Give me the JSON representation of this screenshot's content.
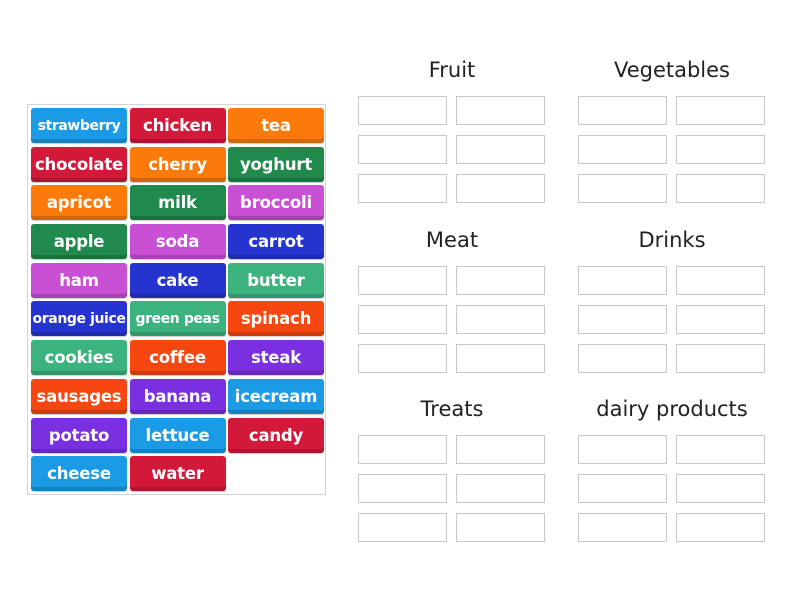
{
  "word_bank": {
    "tiles": [
      {
        "label": "strawberry",
        "color": "#1b9ae6"
      },
      {
        "label": "chicken",
        "color": "#d2193a"
      },
      {
        "label": "tea",
        "color": "#fb7a0a"
      },
      {
        "label": "chocolate",
        "color": "#d2193a"
      },
      {
        "label": "cherry",
        "color": "#fb7a0a"
      },
      {
        "label": "yoghurt",
        "color": "#1f8a4c"
      },
      {
        "label": "apricot",
        "color": "#fb7a0a"
      },
      {
        "label": "milk",
        "color": "#1f8a4c"
      },
      {
        "label": "broccoli",
        "color": "#c94fd4"
      },
      {
        "label": "apple",
        "color": "#1f8a4c"
      },
      {
        "label": "soda",
        "color": "#c94fd4"
      },
      {
        "label": "carrot",
        "color": "#2634cf"
      },
      {
        "label": "ham",
        "color": "#c94fd4"
      },
      {
        "label": "cake",
        "color": "#2634cf"
      },
      {
        "label": "butter",
        "color": "#3cb37e"
      },
      {
        "label": "orange juice",
        "color": "#2634cf"
      },
      {
        "label": "green peas",
        "color": "#3cb37e"
      },
      {
        "label": "spinach",
        "color": "#f5470f"
      },
      {
        "label": "cookies",
        "color": "#3cb37e"
      },
      {
        "label": "coffee",
        "color": "#f5470f"
      },
      {
        "label": "steak",
        "color": "#7a2fe0"
      },
      {
        "label": "sausages",
        "color": "#f5470f"
      },
      {
        "label": "banana",
        "color": "#7a2fe0"
      },
      {
        "label": "icecream",
        "color": "#1b9ae6"
      },
      {
        "label": "potato",
        "color": "#7a2fe0"
      },
      {
        "label": "lettuce",
        "color": "#1b9ae6"
      },
      {
        "label": "candy",
        "color": "#d2193a"
      },
      {
        "label": "cheese",
        "color": "#1b9ae6"
      },
      {
        "label": "water",
        "color": "#d2193a"
      }
    ]
  },
  "groups": [
    {
      "title": "Fruit",
      "slots": 6
    },
    {
      "title": "Vegetables",
      "slots": 6
    },
    {
      "title": "Meat",
      "slots": 6
    },
    {
      "title": "Drinks",
      "slots": 6
    },
    {
      "title": "Treats",
      "slots": 6
    },
    {
      "title": "dairy products",
      "slots": 6
    }
  ]
}
